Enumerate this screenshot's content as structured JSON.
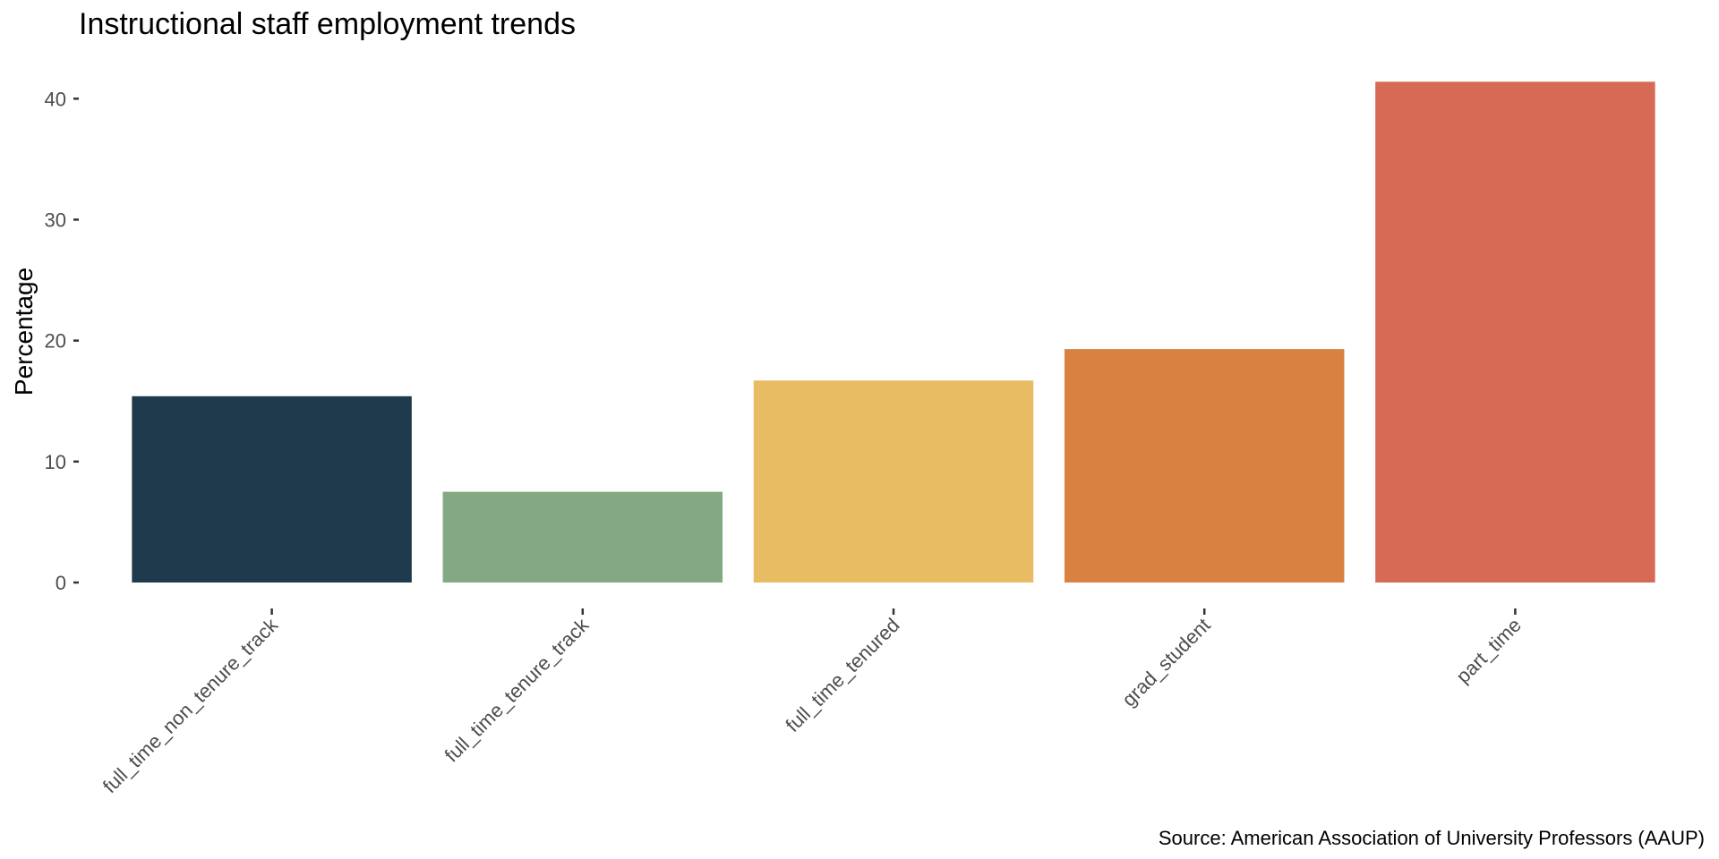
{
  "chart_data": {
    "type": "bar",
    "title": "Instructional staff employment trends",
    "ylabel": "Percentage",
    "xlabel": "",
    "categories": [
      "full_time_non_tenure_track",
      "full_time_tenure_track",
      "full_time_tenured",
      "grad_student",
      "part_time"
    ],
    "values": [
      15.4,
      7.5,
      16.7,
      19.3,
      41.4
    ],
    "colors": [
      "#1e3a4c",
      "#84a982",
      "#e7bc63",
      "#d98141",
      "#d66a55"
    ],
    "ylim": [
      0,
      41.5
    ],
    "yticks": [
      0,
      10,
      20,
      30,
      40
    ],
    "grid": false,
    "legend": "none",
    "caption": "Source: American Association of University Professors (AAUP)"
  }
}
